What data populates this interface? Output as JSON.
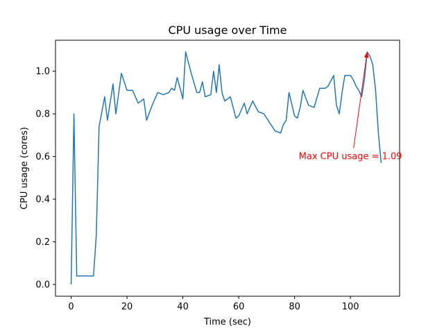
{
  "chart_data": {
    "type": "line",
    "title": "CPU usage over Time",
    "xlabel": "Time (sec)",
    "ylabel": "CPU usage (cores)",
    "xlim": [
      -5.6,
      117.6
    ],
    "ylim": [
      -0.055,
      1.145
    ],
    "xticks": [
      0,
      20,
      40,
      60,
      80,
      100
    ],
    "xtick_labels": [
      "0",
      "20",
      "40",
      "60",
      "80",
      "100"
    ],
    "yticks": [
      0.0,
      0.2,
      0.4,
      0.6,
      0.8,
      1.0
    ],
    "ytick_labels": [
      "0.0",
      "0.2",
      "0.4",
      "0.6",
      "0.8",
      "1.0"
    ],
    "grid": false,
    "series": [
      {
        "color": "#1f77b4",
        "x": [
          0,
          1,
          2,
          4,
          6,
          7,
          8,
          9,
          10,
          12,
          13,
          15,
          16,
          18,
          20,
          22,
          24,
          26,
          27,
          29,
          31,
          33,
          35,
          36,
          37,
          38,
          40,
          41,
          43,
          45,
          46,
          47,
          48,
          50,
          51,
          52,
          53,
          54,
          55,
          57,
          58,
          59,
          60,
          62,
          63,
          65,
          67,
          69,
          71,
          73,
          75,
          76,
          77,
          78,
          80,
          81,
          82,
          83,
          85,
          87,
          89,
          91,
          92,
          94,
          95,
          96,
          97,
          98,
          99,
          100,
          101,
          102,
          103,
          104,
          105,
          106,
          107,
          108,
          109,
          110,
          111
        ],
        "values": [
          0.0,
          0.8,
          0.04,
          0.04,
          0.04,
          0.04,
          0.04,
          0.23,
          0.74,
          0.88,
          0.77,
          0.94,
          0.8,
          0.99,
          0.91,
          0.91,
          0.85,
          0.87,
          0.77,
          0.84,
          0.9,
          0.89,
          0.9,
          0.92,
          0.91,
          0.97,
          0.87,
          1.09,
          0.99,
          0.9,
          0.9,
          0.95,
          0.88,
          0.89,
          1.0,
          0.9,
          1.03,
          0.9,
          0.86,
          0.88,
          0.83,
          0.78,
          0.79,
          0.85,
          0.8,
          0.86,
          0.81,
          0.8,
          0.76,
          0.72,
          0.71,
          0.75,
          0.77,
          0.9,
          0.79,
          0.78,
          0.83,
          0.91,
          0.84,
          0.83,
          0.92,
          0.92,
          0.93,
          0.98,
          0.84,
          0.8,
          0.9,
          0.98,
          0.98,
          0.98,
          0.96,
          0.93,
          0.91,
          0.88,
          0.96,
          1.09,
          1.07,
          1.03,
          0.91,
          0.71,
          0.57
        ]
      }
    ],
    "annotation": {
      "text": "Max CPU usage = 1.09",
      "point": [
        106.0,
        1.09
      ],
      "text_pos": [
        81.5,
        0.6
      ],
      "color": "#ff0000"
    }
  }
}
